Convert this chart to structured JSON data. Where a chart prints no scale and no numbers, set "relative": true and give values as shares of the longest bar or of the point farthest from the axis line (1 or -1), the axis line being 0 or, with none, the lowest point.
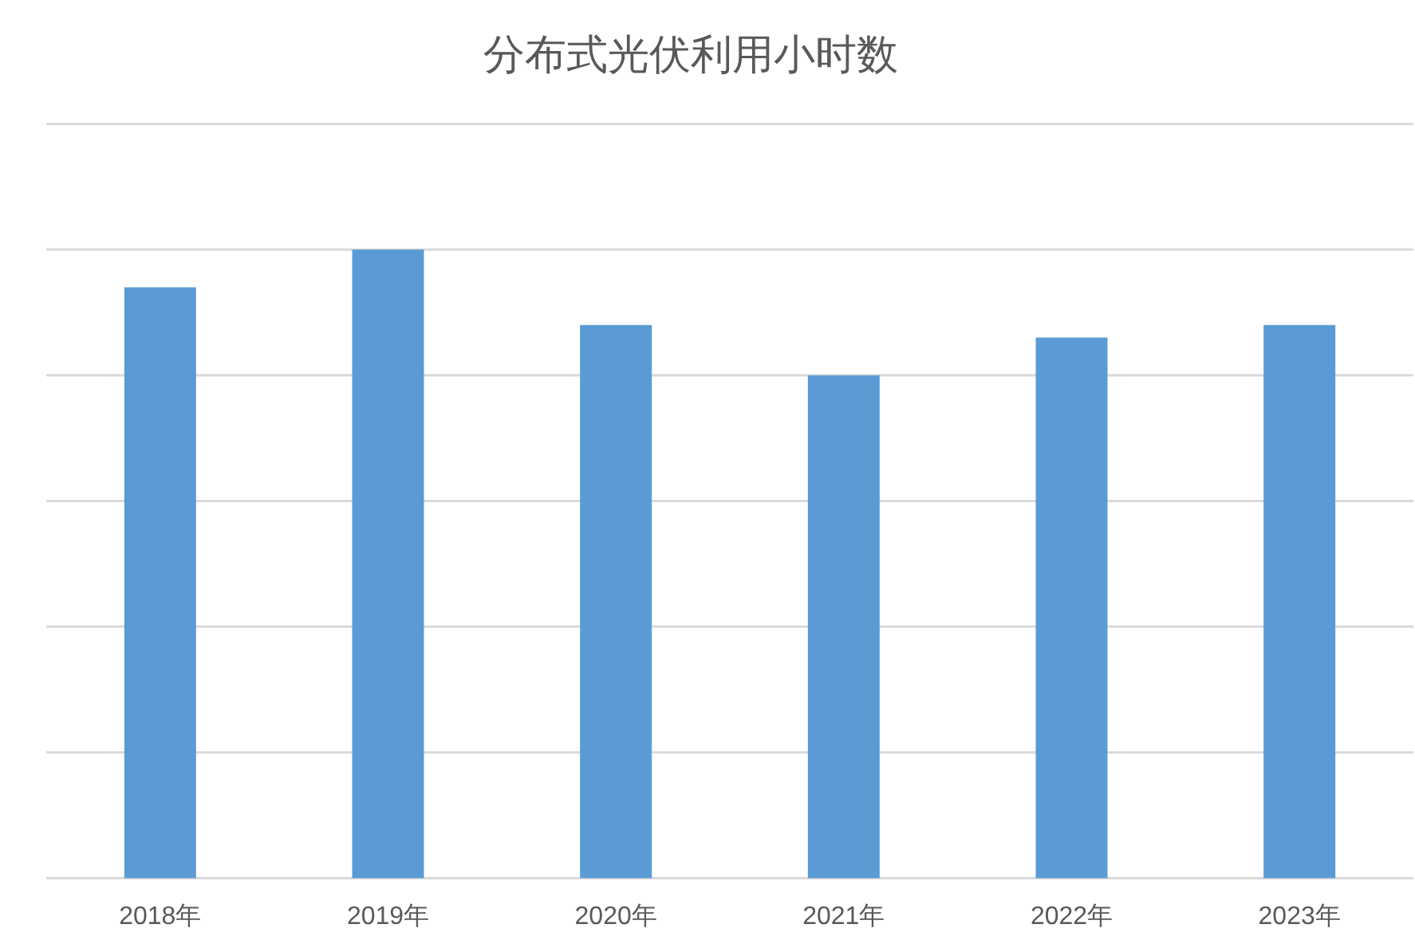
{
  "chart_data": {
    "type": "bar",
    "title": "分布式光伏利用小时数",
    "categories": [
      "2018年",
      "2019年",
      "2020年",
      "2021年",
      "2022年",
      "2023年"
    ],
    "values": [
      0.94,
      1,
      0.88,
      0.8,
      0.86,
      0.88
    ],
    "color": "#5b9bd5",
    "relative": true,
    "grid": "y"
  }
}
